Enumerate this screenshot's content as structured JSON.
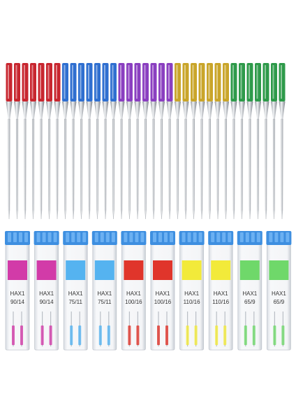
{
  "cases": [
    {
      "brand": "HAX1",
      "size": "90/14"
    },
    {
      "brand": "HAX1",
      "size": "90/14"
    },
    {
      "brand": "HAX1",
      "size": "75/11"
    },
    {
      "brand": "HAX1",
      "size": "75/11"
    },
    {
      "brand": "HAX1",
      "size": "100/16"
    },
    {
      "brand": "HAX1",
      "size": "100/16"
    },
    {
      "brand": "HAX1",
      "size": "110/16"
    },
    {
      "brand": "HAX1",
      "size": "110/16"
    },
    {
      "brand": "HAX1",
      "size": "65/9"
    },
    {
      "brand": "HAX1",
      "size": "65/9"
    }
  ]
}
